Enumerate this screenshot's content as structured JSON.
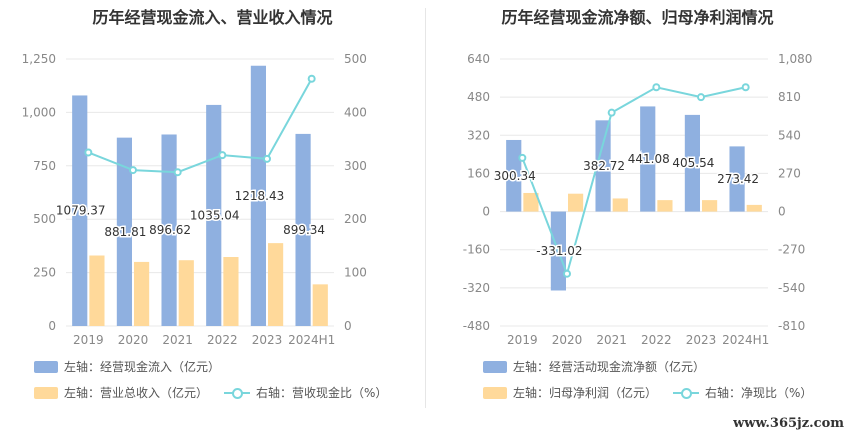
{
  "colors": {
    "bar_primary": "#8fb0e0",
    "bar_secondary": "#ffd99a",
    "line": "#79d6dc",
    "grid": "#e8e8e8",
    "axis_text": "#888888"
  },
  "watermark": "www.365jz.com",
  "chart_data": [
    {
      "type": "bar",
      "title": "历年经营现金流入、营业收入情况",
      "categories": [
        "2019",
        "2020",
        "2021",
        "2022",
        "2023",
        "2024H1"
      ],
      "left_axis": {
        "ylim": [
          0,
          1250
        ],
        "ticks": [
          "0",
          "250",
          "500",
          "750",
          "1,000",
          "1,250"
        ]
      },
      "right_axis": {
        "ylim": [
          0,
          500
        ],
        "ticks": [
          "0",
          "100",
          "200",
          "300",
          "400",
          "500"
        ]
      },
      "series": [
        {
          "name": "左轴：经营现金流入（亿元）",
          "kind": "bar",
          "axis": "left",
          "values": [
            1079.37,
            881.81,
            896.62,
            1035.04,
            1218.43,
            899.34
          ],
          "labels": [
            "1079.37",
            "881.81",
            "896.62",
            "1035.04",
            "1218.43",
            "899.34"
          ]
        },
        {
          "name": "左轴：营业总收入（亿元）",
          "kind": "bar",
          "axis": "left",
          "values": [
            330,
            300,
            308,
            323,
            388,
            195
          ]
        },
        {
          "name": "右轴：营收现金比（%）",
          "kind": "line",
          "axis": "right",
          "values": [
            325,
            292,
            288,
            320,
            313,
            463
          ]
        }
      ],
      "legend": [
        "左轴：经营现金流入（亿元）",
        "左轴：营业总收入（亿元）",
        "右轴：营收现金比（%）"
      ]
    },
    {
      "type": "bar",
      "title": "历年经营现金流净额、归母净利润情况",
      "categories": [
        "2019",
        "2020",
        "2021",
        "2022",
        "2023",
        "2024H1"
      ],
      "left_axis": {
        "ylim": [
          -480,
          640
        ],
        "ticks": [
          "-480",
          "-320",
          "-160",
          "0",
          "160",
          "320",
          "480",
          "640"
        ]
      },
      "right_axis": {
        "ylim": [
          -810,
          1080
        ],
        "ticks": [
          "-810",
          "-540",
          "-270",
          "0",
          "270",
          "540",
          "810",
          "1,080"
        ]
      },
      "series": [
        {
          "name": "左轴：经营活动现金流净额（亿元）",
          "kind": "bar",
          "axis": "left",
          "values": [
            300.34,
            -331.02,
            382.72,
            441.08,
            405.54,
            273.42
          ],
          "labels": [
            "300.34",
            "-331.02",
            "382.72",
            "441.08",
            "405.54",
            "273.42"
          ]
        },
        {
          "name": "左轴：归母净利润（亿元）",
          "kind": "bar",
          "axis": "left",
          "values": [
            78,
            75,
            55,
            48,
            48,
            28
          ]
        },
        {
          "name": "右轴：净现比（%）",
          "kind": "line",
          "axis": "right",
          "values": [
            380,
            -440,
            700,
            880,
            810,
            880
          ]
        }
      ],
      "legend": [
        "左轴：经营活动现金流净额（亿元）",
        "左轴：归母净利润（亿元）",
        "右轴：净现比（%）"
      ]
    }
  ]
}
